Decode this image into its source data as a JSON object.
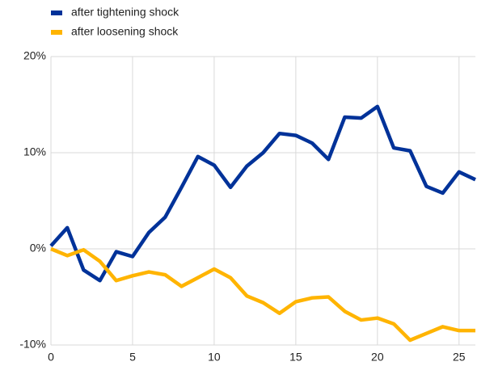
{
  "chart_data": {
    "type": "line",
    "x": [
      0,
      1,
      2,
      3,
      4,
      5,
      6,
      7,
      8,
      9,
      10,
      11,
      12,
      13,
      14,
      15,
      16,
      17,
      18,
      19,
      20,
      21,
      22,
      23,
      24,
      25,
      26
    ],
    "series": [
      {
        "name": "after tightening shock",
        "color": "#003299",
        "values": [
          0.3,
          2.2,
          -2.2,
          -3.3,
          -0.3,
          -0.8,
          1.7,
          3.3,
          6.4,
          9.6,
          8.7,
          6.4,
          8.6,
          10,
          12,
          11.8,
          11,
          9.3,
          13.7,
          13.6,
          14.8,
          10.5,
          10.2,
          6.5,
          5.8,
          8,
          7.2
        ]
      },
      {
        "name": "after loosening shock",
        "color": "#ffb400",
        "values": [
          0,
          -0.7,
          -0.1,
          -1.3,
          -3.3,
          -2.8,
          -2.4,
          -2.7,
          -3.9,
          -3,
          -2.1,
          -3,
          -4.9,
          -5.6,
          -6.7,
          -5.5,
          -5.1,
          -5,
          -6.5,
          -7.4,
          -7.2,
          -7.8,
          -9.5,
          -8.8,
          -8.1,
          -8.5,
          -8.5
        ]
      }
    ],
    "xlim": [
      0,
      26
    ],
    "xticks": [
      0,
      5,
      10,
      15,
      20,
      25
    ],
    "ylim": [
      -10,
      20
    ],
    "yticks": [
      {
        "value": -10,
        "label": "-10%"
      },
      {
        "value": 0,
        "label": "0%"
      },
      {
        "value": 10,
        "label": "10%"
      },
      {
        "value": 20,
        "label": "20%"
      }
    ],
    "grid": true,
    "legend": "top-left"
  }
}
